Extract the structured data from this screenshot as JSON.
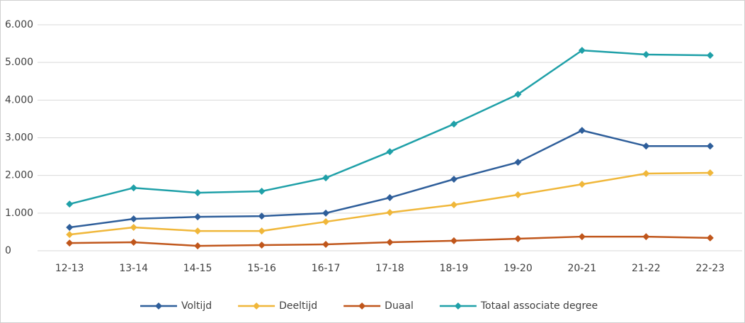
{
  "chart_data": {
    "type": "line",
    "categories": [
      "12-13",
      "13-14",
      "14-15",
      "15-16",
      "16-17",
      "17-18",
      "18-19",
      "19-20",
      "20-21",
      "21-22",
      "22-23"
    ],
    "series": [
      {
        "name": "Voltijd",
        "color": "#2e5e9a",
        "values": [
          620,
          846,
          900,
          920,
          1000,
          1410,
          1900,
          2350,
          3195,
          2780,
          2780
        ]
      },
      {
        "name": "Deeltijd",
        "color": "#f0b73a",
        "values": [
          430,
          620,
          525,
          525,
          770,
          1015,
          1220,
          1485,
          1765,
          2050,
          2070
        ]
      },
      {
        "name": "Duaal",
        "color": "#c0561b",
        "values": [
          205,
          225,
          130,
          150,
          170,
          225,
          265,
          320,
          375,
          375,
          340
        ]
      },
      {
        "name": "Totaal associate degree",
        "color": "#1fa0a8",
        "values": [
          1240,
          1670,
          1540,
          1580,
          1935,
          2630,
          3365,
          4155,
          5320,
          5210,
          5190
        ]
      }
    ],
    "ylim": [
      0,
      6000
    ],
    "yticks": [
      0,
      {
        "value": 1000,
        "label": "1.000"
      },
      {
        "value": 2000,
        "label": "2.000"
      },
      {
        "value": 3000,
        "label": "3.000"
      },
      {
        "value": 4000,
        "label": "4.000"
      },
      {
        "value": 5000,
        "label": "5.000"
      },
      {
        "value": 6000,
        "label": "6.000"
      }
    ],
    "grid": true,
    "legend": "bottom"
  }
}
